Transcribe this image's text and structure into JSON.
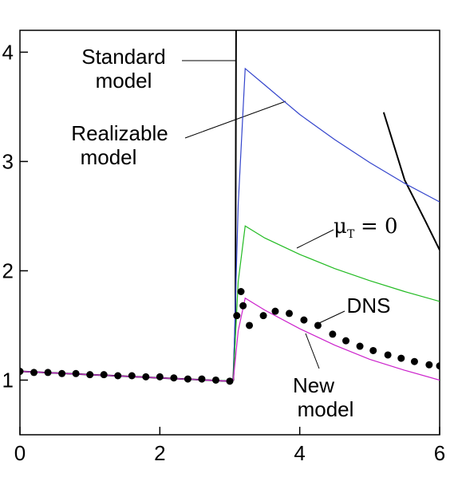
{
  "chart_data": {
    "type": "line",
    "xlim": [
      0,
      6
    ],
    "ylim": [
      0.5,
      4.2
    ],
    "xticks": [
      0,
      2,
      4,
      6
    ],
    "yticks": [
      1,
      2,
      3,
      4
    ],
    "series": [
      {
        "color": "#000000",
        "x": [
          0,
          1,
          2,
          3,
          3.05,
          3.08,
          3.09,
          4.9,
          5.2,
          5.5,
          5.8,
          6
        ],
        "values": [
          1.08,
          1.05,
          1.02,
          0.99,
          1.0,
          1.5,
          4.2,
          null,
          3.45,
          2.83,
          2.45,
          2.19
        ]
      },
      {
        "color": "#3344cc",
        "x": [
          0,
          1,
          2,
          3,
          3.05,
          3.12,
          3.22,
          3.5,
          4,
          4.5,
          5,
          5.5,
          6
        ],
        "values": [
          1.08,
          1.05,
          1.02,
          0.99,
          1.0,
          2.6,
          3.85,
          3.7,
          3.43,
          3.2,
          2.99,
          2.8,
          2.63
        ]
      },
      {
        "color": "#22bb22",
        "x": [
          0,
          1,
          2,
          3,
          3.05,
          3.12,
          3.22,
          3.5,
          4,
          4.5,
          5,
          5.5,
          6
        ],
        "values": [
          1.08,
          1.05,
          1.02,
          0.99,
          1.0,
          1.9,
          2.41,
          2.3,
          2.15,
          2.02,
          1.91,
          1.81,
          1.72
        ]
      },
      {
        "color": "#cc22cc",
        "x": [
          0,
          1,
          2,
          3,
          3.05,
          3.12,
          3.22,
          3.5,
          4,
          4.5,
          5,
          5.5,
          6
        ],
        "values": [
          1.08,
          1.05,
          1.02,
          0.99,
          1.0,
          1.45,
          1.75,
          1.64,
          1.47,
          1.32,
          1.19,
          1.09,
          1.0
        ]
      },
      {
        "type": "scatter",
        "color": "#000000",
        "x": [
          0,
          0.2,
          0.4,
          0.6,
          0.8,
          1.0,
          1.2,
          1.4,
          1.6,
          1.8,
          2.0,
          2.2,
          2.4,
          2.6,
          2.8,
          3.0,
          3.1,
          3.16,
          3.19,
          3.28,
          3.48,
          3.65,
          3.85,
          4.06,
          4.26,
          4.47,
          4.66,
          4.86,
          5.05,
          5.26,
          5.45,
          5.64,
          5.85,
          6.0
        ],
        "values": [
          1.08,
          1.07,
          1.07,
          1.06,
          1.06,
          1.05,
          1.05,
          1.04,
          1.04,
          1.03,
          1.03,
          1.02,
          1.01,
          1.01,
          1.0,
          0.99,
          1.59,
          1.81,
          1.68,
          1.5,
          1.59,
          1.63,
          1.61,
          1.55,
          1.5,
          1.42,
          1.36,
          1.31,
          1.27,
          1.23,
          1.2,
          1.17,
          1.14,
          1.13
        ]
      }
    ],
    "annotations": [
      {
        "lines": [
          "Standard",
          "model"
        ]
      },
      {
        "lines": [
          "Realizable",
          "model"
        ]
      },
      {
        "text": "μ",
        "subscript": "T",
        "suffix": "= 0"
      },
      {
        "lines": [
          "DNS"
        ]
      },
      {
        "lines": [
          "New",
          "model"
        ]
      }
    ]
  }
}
